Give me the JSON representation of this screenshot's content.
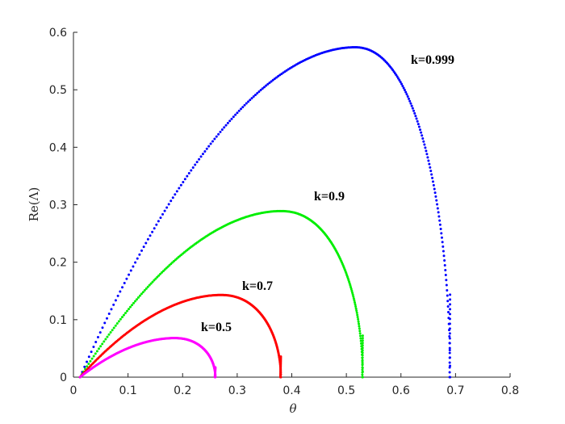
{
  "chart_data": {
    "type": "scatter",
    "title": "",
    "xlabel": "θ",
    "ylabel": "Re(Λ)",
    "xlim": [
      0,
      0.8
    ],
    "ylim": [
      0,
      0.6
    ],
    "grid": false,
    "x_ticks": [
      "0",
      "0.1",
      "0.2",
      "0.3",
      "0.4",
      "0.5",
      "0.6",
      "0.7",
      "0.8"
    ],
    "y_ticks": [
      "0",
      "0.1",
      "0.2",
      "0.3",
      "0.4",
      "0.5",
      "0.6"
    ],
    "series": [
      {
        "name": "k=0.999",
        "color": "#0000ff",
        "theta_end": 0.69,
        "peak_theta": 0.515,
        "peak_value": 0.574
      },
      {
        "name": "k=0.9",
        "color": "#00ee00",
        "theta_end": 0.53,
        "peak_theta": 0.38,
        "peak_value": 0.289
      },
      {
        "name": "k=0.7",
        "color": "#ff0000",
        "theta_end": 0.38,
        "peak_theta": 0.27,
        "peak_value": 0.143
      },
      {
        "name": "k=0.5",
        "color": "#ff00ff",
        "theta_end": 0.26,
        "peak_theta": 0.185,
        "peak_value": 0.068
      }
    ]
  }
}
